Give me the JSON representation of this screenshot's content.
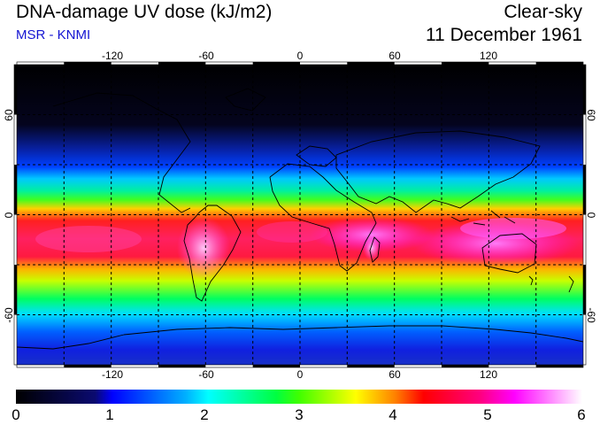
{
  "header": {
    "title": "DNA-damage UV dose (kJ/m2)",
    "subtitle": "MSR - KNMI",
    "sky": "Clear-sky",
    "date": "11 December 1961"
  },
  "map": {
    "lon_labels": [
      "-120",
      "-60",
      "0",
      "60",
      "120"
    ],
    "lat_labels": [
      "60",
      "0",
      "-60"
    ],
    "lon_values": [
      -120,
      -60,
      0,
      60,
      120
    ],
    "lat_values": [
      60,
      0,
      -60
    ],
    "lon_range": [
      -180,
      180
    ],
    "lat_range": [
      -90,
      90
    ],
    "grid_spacing_deg": 30
  },
  "colorbar": {
    "labels": [
      "0",
      "1",
      "2",
      "3",
      "4",
      "5",
      "6"
    ],
    "range": [
      0,
      6
    ],
    "colors": [
      "#000000",
      "#0000ff",
      "#00ffff",
      "#00ff00",
      "#ffff00",
      "#ff0000",
      "#ff00ff",
      "#ffffff"
    ]
  }
}
